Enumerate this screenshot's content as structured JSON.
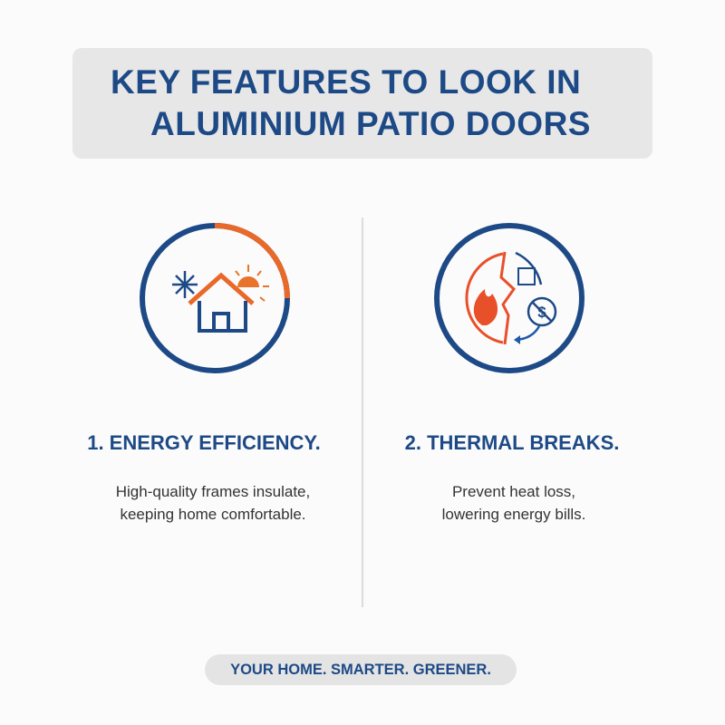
{
  "title": {
    "line1": "KEY FEATURES TO LOOK IN",
    "line2": "ALUMINIUM PATIO DOORS"
  },
  "features": [
    {
      "heading": "1. ENERGY EFFICIENCY.",
      "desc_line1": "High-quality frames insulate,",
      "desc_line2": "keeping home comfortable.",
      "icon": "house-sun-snowflake-icon"
    },
    {
      "heading": "2. THERMAL BREAKS.",
      "desc_line1": "Prevent heat loss,",
      "desc_line2": "lowering energy bills.",
      "icon": "thermal-break-fire-dollar-icon"
    }
  ],
  "footer": "YOUR HOME. SMARTER. GREENER.",
  "colors": {
    "blue": "#1d4a86",
    "orange": "#e8692a",
    "red": "#e8502a"
  }
}
